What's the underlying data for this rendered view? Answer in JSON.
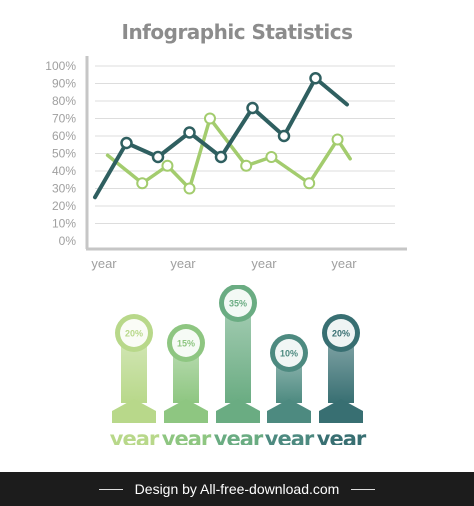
{
  "title": "Infographic Statistics",
  "chart_data": [
    {
      "type": "line",
      "title": "Infographic Statistics",
      "ylim": [
        0,
        100
      ],
      "yticks": [
        "0%",
        "10%",
        "20%",
        "30%",
        "40%",
        "50%",
        "60%",
        "70%",
        "80%",
        "90%",
        "100%"
      ],
      "xlabels": [
        "year",
        "year",
        "year",
        "year"
      ],
      "grid": true,
      "x": [
        1,
        2,
        3,
        4,
        5,
        6,
        7,
        8,
        9,
        10,
        11,
        12
      ],
      "series": [
        {
          "color": "#2f5f60",
          "points": [
            [
              0,
              25
            ],
            [
              1,
              56
            ],
            [
              2,
              48
            ],
            [
              3,
              62
            ],
            [
              4,
              48
            ],
            [
              5,
              76
            ],
            [
              6,
              60
            ],
            [
              7,
              93
            ],
            [
              8,
              78
            ]
          ]
        },
        {
          "color": "#a3cc6e",
          "points": [
            [
              0.4,
              49
            ],
            [
              1.5,
              33
            ],
            [
              2.3,
              43
            ],
            [
              3,
              30
            ],
            [
              3.65,
              70
            ],
            [
              4.8,
              43
            ],
            [
              5.6,
              48
            ],
            [
              6.8,
              33
            ],
            [
              7.7,
              58
            ],
            [
              8.1,
              47
            ]
          ]
        }
      ]
    },
    {
      "type": "bar",
      "categories": [
        "year",
        "year",
        "year",
        "year",
        "year"
      ],
      "values": [
        20,
        15,
        35,
        10,
        20
      ],
      "value_labels": [
        "20%",
        "15%",
        "35%",
        "10%",
        "20%"
      ],
      "colors": [
        "#b8d88a",
        "#8ec681",
        "#6aac82",
        "#4d8a80",
        "#386f72"
      ]
    }
  ],
  "footer": {
    "text": "Design by All-free-download.com"
  }
}
